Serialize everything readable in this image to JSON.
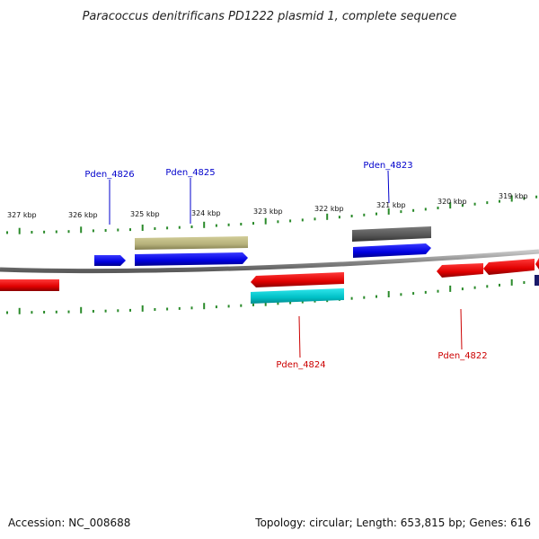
{
  "title": "Paracoccus denitrificans PD1222 plasmid 1, complete sequence",
  "ruler": {
    "labels": [
      "327 kbp",
      "326 kbp",
      "325 kbp",
      "324 kbp",
      "323 kbp",
      "322 kbp",
      "321 kbp",
      "320 kbp",
      "319 kbp"
    ]
  },
  "genes": {
    "top": [
      {
        "label": "Pden_4826",
        "color": "#0000cc"
      },
      {
        "label": "Pden_4825",
        "color": "#0000cc"
      },
      {
        "label": "Pden_4823",
        "color": "#0000cc"
      }
    ],
    "bottom": [
      {
        "label": "Pden_4824",
        "color": "#cc0000"
      },
      {
        "label": "Pden_4822",
        "color": "#cc0000"
      }
    ]
  },
  "colors": {
    "forward_cds": "#0000ee",
    "reverse_cds": "#ee0000",
    "olive_feature": "#b7b27a",
    "gray_feature": "#5a5a5a",
    "cyan_feature": "#00bcc4",
    "backbone": "#888888",
    "ruler_tick": "#2a8a2a"
  },
  "footer": {
    "accession": "Accession: NC_008688",
    "topology": "Topology: circular; Length: 653,815 bp; Genes: 616"
  }
}
